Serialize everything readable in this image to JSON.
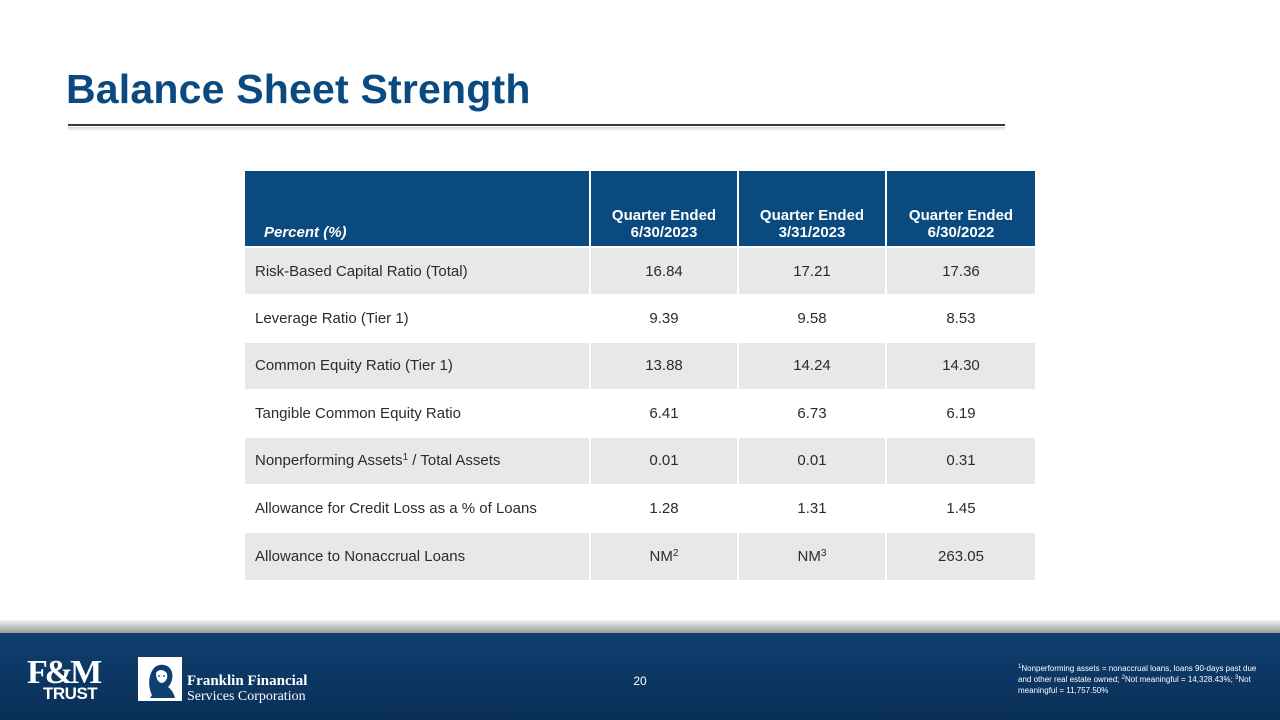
{
  "title": "Balance Sheet Strength",
  "table": {
    "header_label": "Percent (%)",
    "columns": [
      {
        "line1": "Quarter Ended",
        "line2": "6/30/2023"
      },
      {
        "line1": "Quarter Ended",
        "line2": "3/31/2023"
      },
      {
        "line1": "Quarter Ended",
        "line2": "6/30/2022"
      }
    ],
    "rows": [
      {
        "label": "Risk-Based Capital Ratio (Total)",
        "values": [
          "16.84",
          "17.21",
          "17.36"
        ]
      },
      {
        "label": "Leverage Ratio (Tier 1)",
        "values": [
          "9.39",
          "9.58",
          "8.53"
        ]
      },
      {
        "label": "Common Equity Ratio (Tier 1)",
        "values": [
          "13.88",
          "14.24",
          "14.30"
        ]
      },
      {
        "label": "Tangible Common Equity Ratio",
        "values": [
          "6.41",
          "6.73",
          "6.19"
        ]
      },
      {
        "label_pre": "Nonperforming Assets",
        "label_sup": "1",
        "label_post": " / Total Assets",
        "values": [
          "0.01",
          "0.01",
          "0.31"
        ]
      },
      {
        "label": "Allowance for Credit Loss as a % of Loans",
        "values": [
          "1.28",
          "1.31",
          "1.45"
        ]
      },
      {
        "label": "Allowance to Nonaccrual Loans",
        "v1_base": "NM",
        "v1_sup": "2",
        "v2_base": "NM",
        "v2_sup": "3",
        "v3": "263.05"
      }
    ]
  },
  "footer": {
    "logo_fm": "F&M",
    "logo_trust": "TRUST",
    "ffsc_line1": "Franklin Financial",
    "ffsc_line2": "Services Corporation",
    "page_number": "20",
    "footnote": {
      "s1": "1",
      "t1": "Nonperforming assets = nonaccrual loans, loans 90-days past due and other real estate owned; ",
      "s2": "2",
      "t2": "Not meaningful = 14,328.43%; ",
      "s3": "3",
      "t3": "Not meaningful = 11,757.50%"
    }
  }
}
